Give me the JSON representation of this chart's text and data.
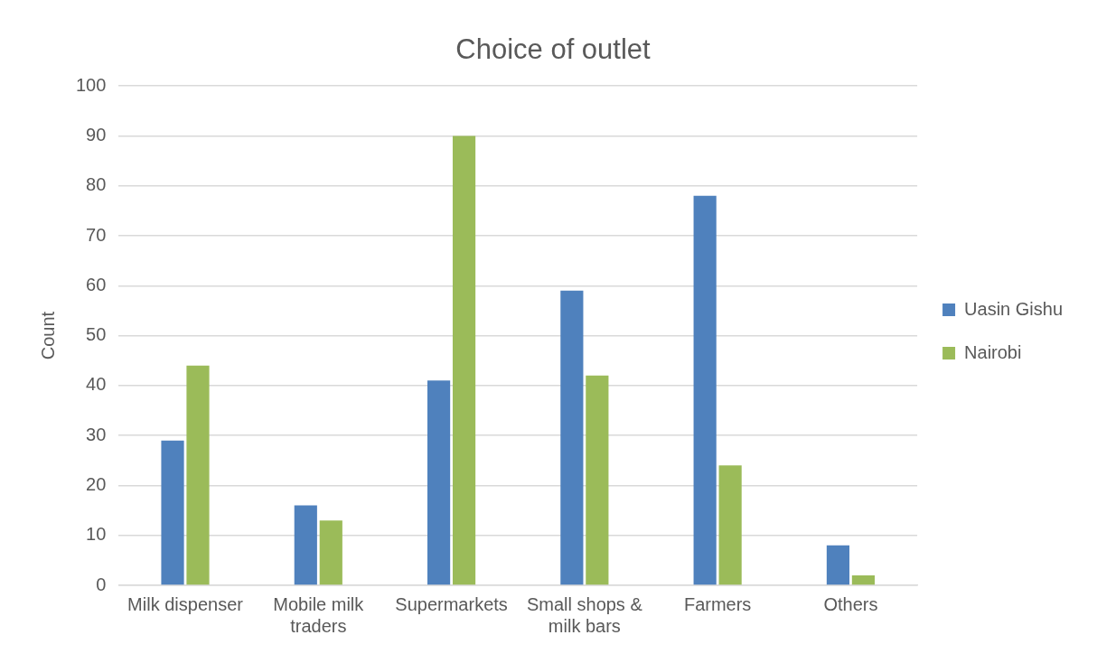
{
  "chart_data": {
    "type": "bar",
    "title": "Choice of outlet",
    "ylabel": "Count",
    "categories": [
      "Milk dispenser",
      "Mobile milk traders",
      "Supermarkets",
      "Small shops & milk bars",
      "Farmers",
      "Others"
    ],
    "series": [
      {
        "name": "Uasin Gishu",
        "color": "#4f81bd",
        "values": [
          29,
          16,
          41,
          59,
          78,
          8
        ]
      },
      {
        "name": "Nairobi",
        "color": "#9bbb59",
        "values": [
          44,
          13,
          90,
          42,
          24,
          2
        ]
      }
    ],
    "ylim": [
      0,
      100
    ],
    "yticks": [
      0,
      10,
      20,
      30,
      40,
      50,
      60,
      70,
      80,
      90,
      100
    ],
    "grid": "y",
    "legend": "right"
  }
}
